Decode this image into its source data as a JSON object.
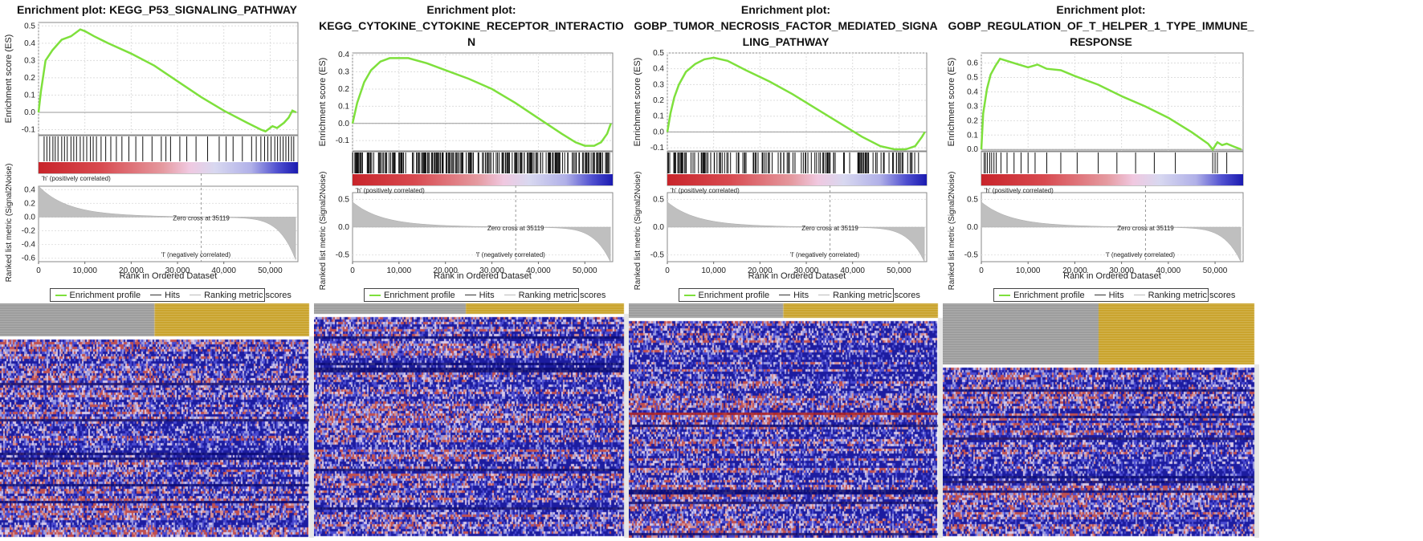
{
  "panels": [
    {
      "title_lines": [
        "Enrichment plot: KEGG_P53_SIGNALING_PATHWAY"
      ],
      "es_ticks": [
        0.5,
        0.4,
        0.3,
        0.2,
        0.1,
        0.0,
        -0.1
      ],
      "es_ylim": [
        -0.13,
        0.52
      ],
      "metric_ticks": [
        0.4,
        0.2,
        0.0,
        -0.2,
        -0.4,
        -0.6
      ],
      "metric_ylim": [
        -0.65,
        0.45
      ],
      "zero_cross_label": "Zero cross at 35119",
      "es_curve": [
        [
          0,
          0
        ],
        [
          500,
          0.12
        ],
        [
          1500,
          0.3
        ],
        [
          3000,
          0.36
        ],
        [
          5000,
          0.42
        ],
        [
          7000,
          0.44
        ],
        [
          9000,
          0.48
        ],
        [
          10000,
          0.47
        ],
        [
          12000,
          0.44
        ],
        [
          15000,
          0.4
        ],
        [
          20000,
          0.34
        ],
        [
          25000,
          0.27
        ],
        [
          30000,
          0.18
        ],
        [
          35000,
          0.09
        ],
        [
          40000,
          0.01
        ],
        [
          45000,
          -0.06
        ],
        [
          48000,
          -0.1
        ],
        [
          49000,
          -0.11
        ],
        [
          50500,
          -0.08
        ],
        [
          51500,
          -0.09
        ],
        [
          53000,
          -0.06
        ],
        [
          54000,
          -0.03
        ],
        [
          54800,
          0.01
        ],
        [
          55600,
          0.0
        ]
      ],
      "hits": [
        1200,
        1800,
        2400,
        3100,
        3600,
        4200,
        5000,
        5600,
        6200,
        7000,
        7600,
        8200,
        9000,
        9700,
        10400,
        11200,
        11800,
        12500,
        13500,
        14500,
        15600,
        16800,
        18000,
        19500,
        21000,
        22500,
        24500,
        26500,
        27500,
        28500,
        30500,
        32000,
        34000,
        36500,
        39000,
        40500,
        42000,
        44000,
        46000,
        47000,
        48000,
        48800,
        49500,
        50200,
        51000,
        51600,
        52200,
        52800,
        53400,
        54000,
        54600,
        55100
      ]
    },
    {
      "title_lines": [
        "Enrichment plot:",
        "KEGG_CYTOKINE_CYTOKINE_RECEPTOR_INTERACTIO",
        "N"
      ],
      "es_ticks": [
        0.4,
        0.3,
        0.2,
        0.1,
        0.0,
        -0.1
      ],
      "es_ylim": [
        -0.16,
        0.41
      ],
      "metric_ticks": [
        0.5,
        0.0,
        -0.5
      ],
      "metric_ylim": [
        -0.62,
        0.62
      ],
      "zero_cross_label": "Zero cross at 35119",
      "es_curve": [
        [
          0,
          0
        ],
        [
          1000,
          0.12
        ],
        [
          2500,
          0.24
        ],
        [
          4000,
          0.31
        ],
        [
          6000,
          0.36
        ],
        [
          8000,
          0.38
        ],
        [
          12000,
          0.38
        ],
        [
          16000,
          0.35
        ],
        [
          20000,
          0.31
        ],
        [
          25000,
          0.26
        ],
        [
          30000,
          0.2
        ],
        [
          35000,
          0.12
        ],
        [
          40000,
          0.03
        ],
        [
          45000,
          -0.06
        ],
        [
          48000,
          -0.11
        ],
        [
          50000,
          -0.13
        ],
        [
          52000,
          -0.13
        ],
        [
          53500,
          -0.11
        ],
        [
          54800,
          -0.06
        ],
        [
          55600,
          0.0
        ]
      ],
      "hits": "dense"
    },
    {
      "title_lines": [
        "Enrichment plot:",
        "GOBP_TUMOR_NECROSIS_FACTOR_MEDIATED_SIGNA",
        "LING_PATHWAY"
      ],
      "es_ticks": [
        0.5,
        0.4,
        0.3,
        0.2,
        0.1,
        0.0,
        -0.1
      ],
      "es_ylim": [
        -0.12,
        0.5
      ],
      "metric_ticks": [
        0.5,
        0.0,
        -0.5
      ],
      "metric_ylim": [
        -0.62,
        0.62
      ],
      "zero_cross_label": "Zero cross at 35119",
      "es_curve": [
        [
          0,
          0
        ],
        [
          700,
          0.12
        ],
        [
          1500,
          0.22
        ],
        [
          2500,
          0.3
        ],
        [
          4000,
          0.38
        ],
        [
          6000,
          0.43
        ],
        [
          8000,
          0.46
        ],
        [
          10000,
          0.47
        ],
        [
          13000,
          0.45
        ],
        [
          17000,
          0.39
        ],
        [
          22000,
          0.32
        ],
        [
          27000,
          0.24
        ],
        [
          32000,
          0.15
        ],
        [
          37000,
          0.06
        ],
        [
          42000,
          -0.03
        ],
        [
          46000,
          -0.09
        ],
        [
          49000,
          -0.11
        ],
        [
          51500,
          -0.11
        ],
        [
          53500,
          -0.09
        ],
        [
          55000,
          -0.03
        ],
        [
          55600,
          0.0
        ]
      ],
      "hits": "medium"
    },
    {
      "title_lines": [
        "Enrichment plot:",
        "GOBP_REGULATION_OF_T_HELPER_1_TYPE_IMMUNE_",
        "RESPONSE"
      ],
      "es_ticks": [
        0.6,
        0.5,
        0.4,
        0.3,
        0.2,
        0.1,
        0.0
      ],
      "es_ylim": [
        -0.01,
        0.67
      ],
      "metric_ticks": [
        0.5,
        0.0,
        -0.5
      ],
      "metric_ylim": [
        -0.62,
        0.62
      ],
      "zero_cross_label": "Zero cross at 35119",
      "es_curve": [
        [
          0,
          0
        ],
        [
          400,
          0.25
        ],
        [
          1200,
          0.42
        ],
        [
          2000,
          0.52
        ],
        [
          3000,
          0.58
        ],
        [
          4000,
          0.63
        ],
        [
          6000,
          0.61
        ],
        [
          8000,
          0.59
        ],
        [
          10000,
          0.57
        ],
        [
          12000,
          0.59
        ],
        [
          14000,
          0.56
        ],
        [
          17000,
          0.55
        ],
        [
          20000,
          0.51
        ],
        [
          25000,
          0.45
        ],
        [
          30000,
          0.37
        ],
        [
          35000,
          0.3
        ],
        [
          40000,
          0.22
        ],
        [
          45000,
          0.12
        ],
        [
          48500,
          0.04
        ],
        [
          49500,
          0.0
        ],
        [
          50500,
          0.05
        ],
        [
          51500,
          0.03
        ],
        [
          52500,
          0.04
        ],
        [
          54000,
          0.02
        ],
        [
          55600,
          0.0
        ]
      ],
      "hits": [
        600,
        900,
        1300,
        1800,
        2200,
        2700,
        3200,
        4200,
        5500,
        7000,
        8500,
        10000,
        11500,
        14000,
        17000,
        20500,
        25000,
        29000,
        33000,
        37000,
        41500,
        49500,
        50000,
        50500,
        52500
      ]
    }
  ],
  "shared": {
    "es_ylabel": "Enrichment score (ES)",
    "metric_ylabel": "Ranked list metric (Signal2Noise)",
    "xlabel": "Rank in Ordered Dataset",
    "xticks": [
      "0",
      "10,000",
      "20,000",
      "30,000",
      "40,000",
      "50,000"
    ],
    "pos_label": "'h' (positively correlated)",
    "neg_label": "'l' (negatively correlated)",
    "legend": [
      "Enrichment profile",
      "Hits",
      "Ranking metric scores"
    ],
    "xmax": 56000,
    "zero_cross": 35119
  },
  "colors": {
    "curve": "#7ee03c",
    "hits": "#111111",
    "metric_fill": "#bfbfbf",
    "pos": "#c8242a",
    "neg": "#3a3ac8",
    "group_a": "#9a9a9a",
    "group_b": "#c9a227",
    "heat_low": "#2a2aa8",
    "heat_high": "#c06060"
  },
  "chart_data": [
    {
      "type": "line",
      "title": "Enrichment plot: KEGG_P53_SIGNALING_PATHWAY",
      "xlabel": "Rank in Ordered Dataset",
      "ylabel": "Enrichment score (ES)",
      "xlim": [
        0,
        56000
      ],
      "ylim": [
        -0.13,
        0.52
      ],
      "series": [
        {
          "name": "Enrichment profile",
          "x": [
            0,
            500,
            1500,
            3000,
            5000,
            7000,
            9000,
            10000,
            12000,
            15000,
            20000,
            25000,
            30000,
            35000,
            40000,
            45000,
            48000,
            49000,
            50500,
            51500,
            53000,
            54000,
            54800,
            55600
          ],
          "values": [
            0,
            0.12,
            0.3,
            0.36,
            0.42,
            0.44,
            0.48,
            0.47,
            0.44,
            0.4,
            0.34,
            0.27,
            0.18,
            0.09,
            0.01,
            -0.06,
            -0.1,
            -0.11,
            -0.08,
            -0.09,
            -0.06,
            -0.03,
            0.01,
            0.0
          ]
        }
      ]
    },
    {
      "type": "line",
      "title": "Enrichment plot: KEGG_CYTOKINE_CYTOKINE_RECEPTOR_INTERACTION",
      "xlabel": "Rank in Ordered Dataset",
      "ylabel": "Enrichment score (ES)",
      "xlim": [
        0,
        56000
      ],
      "ylim": [
        -0.16,
        0.41
      ],
      "series": [
        {
          "name": "Enrichment profile",
          "x": [
            0,
            1000,
            2500,
            4000,
            6000,
            8000,
            12000,
            16000,
            20000,
            25000,
            30000,
            35000,
            40000,
            45000,
            48000,
            50000,
            52000,
            53500,
            54800,
            55600
          ],
          "values": [
            0,
            0.12,
            0.24,
            0.31,
            0.36,
            0.38,
            0.38,
            0.35,
            0.31,
            0.26,
            0.2,
            0.12,
            0.03,
            -0.06,
            -0.11,
            -0.13,
            -0.13,
            -0.11,
            -0.06,
            0.0
          ]
        }
      ]
    },
    {
      "type": "line",
      "title": "Enrichment plot: GOBP_TUMOR_NECROSIS_FACTOR_MEDIATED_SIGNALING_PATHWAY",
      "xlabel": "Rank in Ordered Dataset",
      "ylabel": "Enrichment score (ES)",
      "xlim": [
        0,
        56000
      ],
      "ylim": [
        -0.12,
        0.5
      ],
      "series": [
        {
          "name": "Enrichment profile",
          "x": [
            0,
            700,
            1500,
            2500,
            4000,
            6000,
            8000,
            10000,
            13000,
            17000,
            22000,
            27000,
            32000,
            37000,
            42000,
            46000,
            49000,
            51500,
            53500,
            55000,
            55600
          ],
          "values": [
            0,
            0.12,
            0.22,
            0.3,
            0.38,
            0.43,
            0.46,
            0.47,
            0.45,
            0.39,
            0.32,
            0.24,
            0.15,
            0.06,
            -0.03,
            -0.09,
            -0.11,
            -0.11,
            -0.09,
            -0.03,
            0.0
          ]
        }
      ]
    },
    {
      "type": "line",
      "title": "Enrichment plot: GOBP_REGULATION_OF_T_HELPER_1_TYPE_IMMUNE_RESPONSE",
      "xlabel": "Rank in Ordered Dataset",
      "ylabel": "Enrichment score (ES)",
      "xlim": [
        0,
        56000
      ],
      "ylim": [
        -0.01,
        0.67
      ],
      "series": [
        {
          "name": "Enrichment profile",
          "x": [
            0,
            400,
            1200,
            2000,
            3000,
            4000,
            6000,
            8000,
            10000,
            12000,
            14000,
            17000,
            20000,
            25000,
            30000,
            35000,
            40000,
            45000,
            48500,
            49500,
            50500,
            51500,
            52500,
            54000,
            55600
          ],
          "values": [
            0,
            0.25,
            0.42,
            0.52,
            0.58,
            0.63,
            0.61,
            0.59,
            0.57,
            0.59,
            0.56,
            0.55,
            0.51,
            0.45,
            0.37,
            0.3,
            0.22,
            0.12,
            0.04,
            0.0,
            0.05,
            0.03,
            0.04,
            0.02,
            0.0
          ]
        }
      ]
    }
  ]
}
